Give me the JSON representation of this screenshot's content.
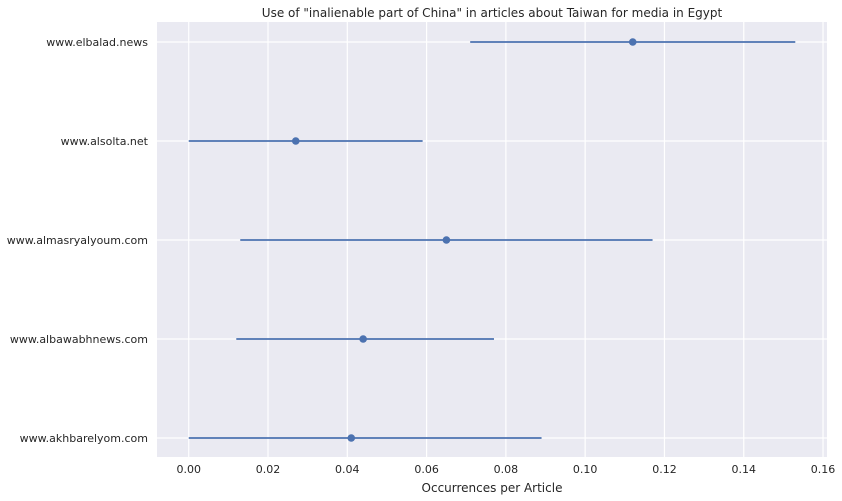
{
  "chart_data": {
    "type": "pointplot",
    "orientation": "horizontal",
    "title": "Use of \"inalienable part of China\" in articles about Taiwan for media in Egypt",
    "xlabel": "Occurrences per Article",
    "ylabel": "",
    "xlim": [
      -0.008,
      0.161
    ],
    "xticks": [
      0.0,
      0.02,
      0.04,
      0.06,
      0.08,
      0.1,
      0.12,
      0.14,
      0.16
    ],
    "xtick_labels": [
      "0.00",
      "0.02",
      "0.04",
      "0.06",
      "0.08",
      "0.10",
      "0.12",
      "0.14",
      "0.16"
    ],
    "grid": true,
    "color": "#4c72b0",
    "background": "#eaeaf2",
    "categories": [
      "www.elbalad.news",
      "www.alsolta.net",
      "www.almasryalyoum.com",
      "www.albawabhnews.com",
      "www.akhbarelyom.com"
    ],
    "values": [
      0.112,
      0.027,
      0.065,
      0.044,
      0.041
    ],
    "ci_low": [
      0.071,
      0.0,
      0.013,
      0.012,
      0.0
    ],
    "ci_high": [
      0.153,
      0.059,
      0.117,
      0.077,
      0.089
    ]
  }
}
